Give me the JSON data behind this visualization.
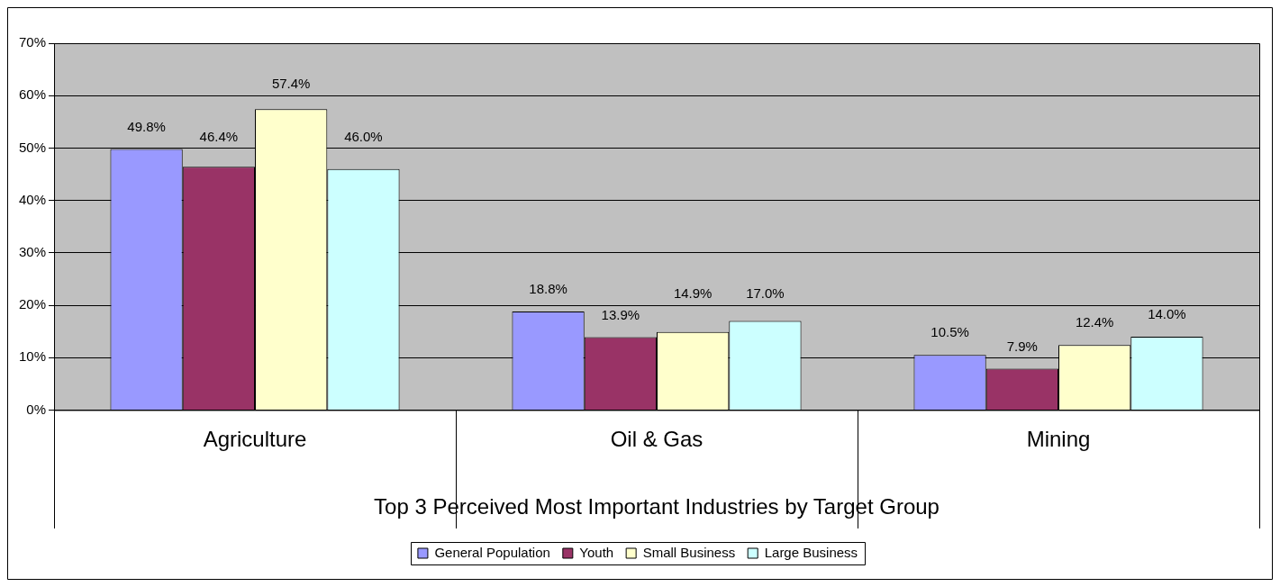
{
  "chart_data": {
    "type": "bar",
    "xlabel": "Top 3 Perceived Most Important Industries by Target Group",
    "categories": [
      "Agriculture",
      "Oil & Gas",
      "Mining"
    ],
    "series": [
      {
        "name": "General Population",
        "color": "#9999ff",
        "values": [
          49.8,
          18.8,
          10.5
        ],
        "value_labels": [
          "49.8%",
          "18.8%",
          "10.5%"
        ]
      },
      {
        "name": "Youth",
        "color": "#993366",
        "values": [
          46.4,
          13.9,
          7.9
        ],
        "value_labels": [
          "46.4%",
          "13.9%",
          "7.9%"
        ]
      },
      {
        "name": "Small Business",
        "color": "#ffffcc",
        "values": [
          57.4,
          14.9,
          12.4
        ],
        "value_labels": [
          "57.4%",
          "14.9%",
          "12.4%"
        ]
      },
      {
        "name": "Large Business",
        "color": "#ccffff",
        "values": [
          46.0,
          17.0,
          14.0
        ],
        "value_labels": [
          "46.0%",
          "17.0%",
          "14.0%"
        ]
      }
    ],
    "ylim": [
      0,
      70
    ],
    "yticks": [
      {
        "value": 0,
        "label": "0%"
      },
      {
        "value": 10,
        "label": "10%"
      },
      {
        "value": 20,
        "label": "20%"
      },
      {
        "value": 30,
        "label": "30%"
      },
      {
        "value": 40,
        "label": "40%"
      },
      {
        "value": 50,
        "label": "50%"
      },
      {
        "value": 60,
        "label": "60%"
      },
      {
        "value": 70,
        "label": "70%"
      }
    ],
    "grid": "y",
    "legend": "bottom"
  }
}
